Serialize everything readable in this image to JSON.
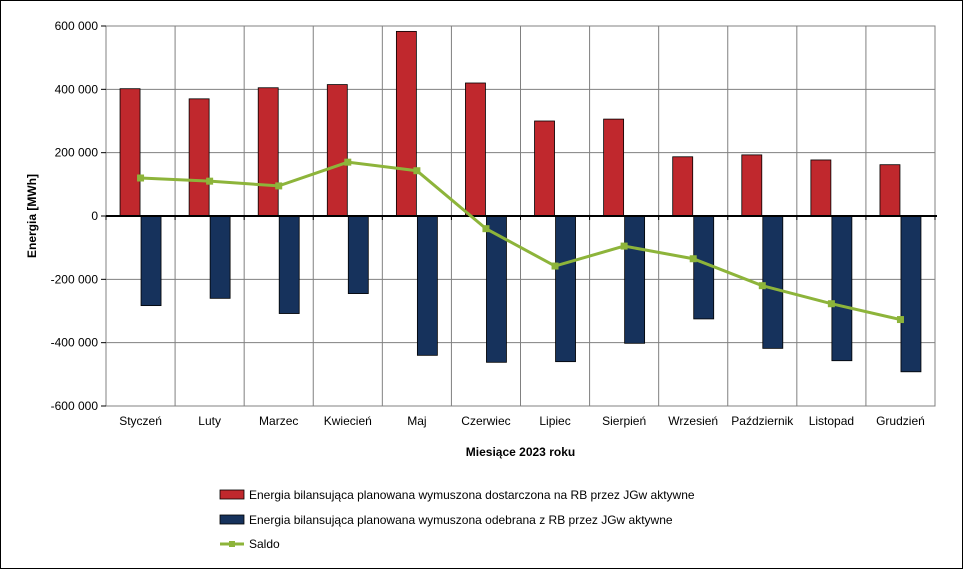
{
  "chart_data": {
    "type": "bar",
    "xlabel": "Miesiące 2023  roku",
    "ylabel": "Energia [MWh]",
    "ylim": [
      -600000,
      600000
    ],
    "yticks": [
      600000,
      400000,
      200000,
      0,
      -200000,
      -400000,
      -600000
    ],
    "ytick_labels": [
      "600 000",
      "400 000",
      "200 000",
      "0",
      "-200 000",
      "-400 000",
      "-600 000"
    ],
    "grid": true,
    "legend_position": "bottom",
    "categories": [
      "Styczeń",
      "Luty",
      "Marzec",
      "Kwiecień",
      "Maj",
      "Czerwiec",
      "Lipiec",
      "Sierpień",
      "Wrzesień",
      "Październik",
      "Listopad",
      "Grudzień"
    ],
    "series": [
      {
        "name": "Energia bilansująca planowana wymuszona dostarczona na RB przez JGw aktywne",
        "type": "bar",
        "color": "#C0282D",
        "values": [
          402000,
          370000,
          405000,
          415000,
          583000,
          420000,
          300000,
          306000,
          187000,
          193000,
          177000,
          162000
        ]
      },
      {
        "name": "Energia bilansująca planowana wymuszona odebrana z RB przez JGw aktywne",
        "type": "bar",
        "color": "#16325C",
        "values": [
          -283000,
          -260000,
          -308000,
          -245000,
          -440000,
          -462000,
          -460000,
          -402000,
          -325000,
          -418000,
          -457000,
          -492000
        ]
      },
      {
        "name": "Saldo",
        "type": "line",
        "color": "#8DB43A",
        "values": [
          120000,
          110000,
          95000,
          170000,
          143000,
          -40000,
          -158000,
          -95000,
          -135000,
          -220000,
          -277000,
          -327000
        ]
      }
    ]
  }
}
